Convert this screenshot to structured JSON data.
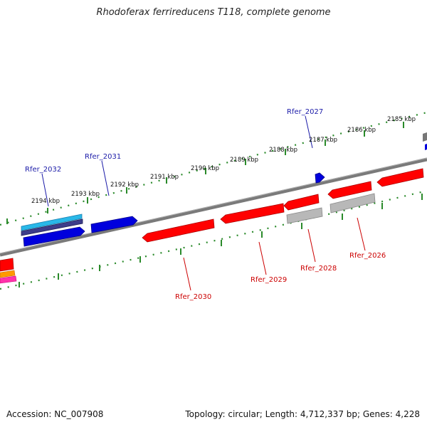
{
  "title": "Rhodoferax ferrireducens T118, complete genome",
  "footer": {
    "accession": "Accession: NC_007908",
    "topology": "Topology: circular; Length: 4,712,337 bp; Genes: 4,228"
  },
  "scale_labels": [
    "2194 kbp",
    "2193 kbp",
    "2192 kbp",
    "2191 kbp",
    "2190 kbp",
    "2189 kbp",
    "2188 kbp",
    "2187 kbp",
    "2186 kbp",
    "2185 kbp"
  ],
  "gene_labels": {
    "rfer_2032": "Rfer_2032",
    "rfer_2031": "Rfer_2031",
    "rfer_2027": "Rfer_2027",
    "rfer_2030": "Rfer_2030",
    "rfer_2029": "Rfer_2029",
    "rfer_2028": "Rfer_2028",
    "rfer_2026": "Rfer_2026"
  },
  "colors": {
    "forward_feature": "#0000dd",
    "reverse_feature": "#ff0000",
    "pseudo_feature": "#aaaaaa",
    "trna_feature": "#1e90c8",
    "backbone": "#7a7a7a",
    "scale": "#2a8a2a"
  }
}
